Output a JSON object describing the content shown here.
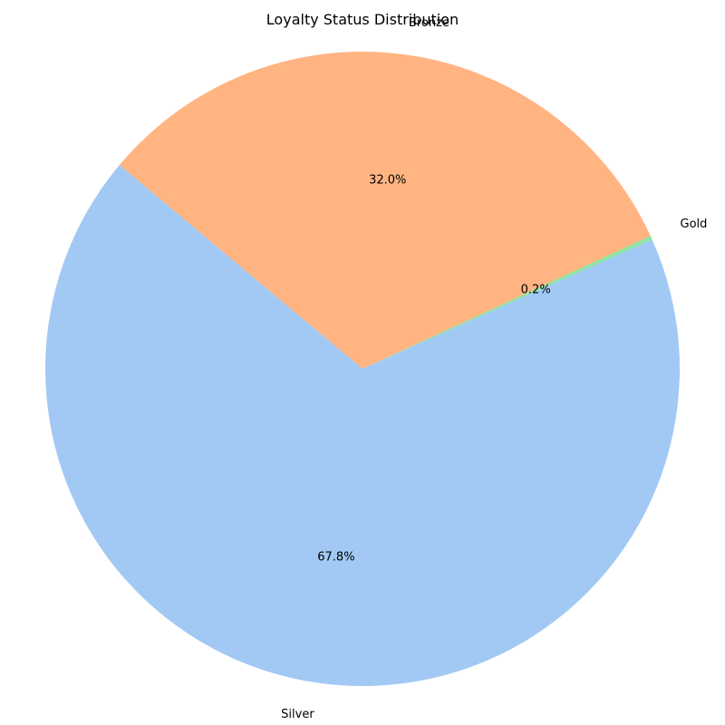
{
  "chart_data": {
    "type": "pie",
    "title": "Loyalty Status Distribution",
    "start_angle_deg": 140,
    "direction": "counterclockwise",
    "slices": [
      {
        "label": "Silver",
        "value": 67.8,
        "pct_label": "67.8%",
        "color": "#a1c9f4"
      },
      {
        "label": "Gold",
        "value": 0.2,
        "pct_label": "0.2%",
        "color": "#8de5a1"
      },
      {
        "label": "Bronze",
        "value": 32.0,
        "pct_label": "32.0%",
        "color": "#ffb482"
      }
    ]
  }
}
